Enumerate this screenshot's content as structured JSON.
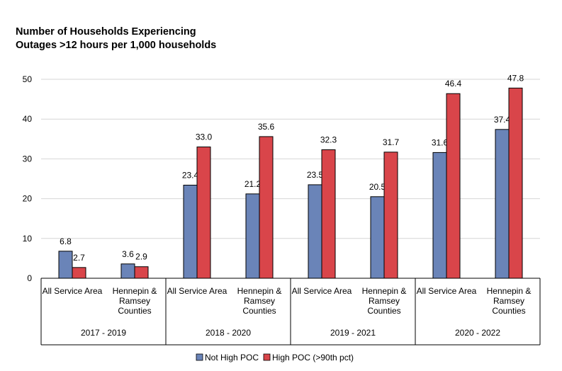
{
  "chart_data": {
    "type": "bar",
    "title_line1": "Number of Households Experiencing",
    "title_line2": "Outages >12 hours per 1,000 households",
    "xlabel": "",
    "ylabel": "",
    "ylim": [
      0,
      50
    ],
    "yticks": [
      0,
      10,
      20,
      30,
      40,
      50
    ],
    "grid": true,
    "legend_position": "bottom",
    "groups": [
      {
        "label": "2017 - 2019",
        "categories": [
          {
            "label_lines": [
              "All Service Area"
            ],
            "values": [
              6.8,
              2.7
            ],
            "value_labels": [
              "6.8",
              "2.7"
            ]
          },
          {
            "label_lines": [
              "Hennepin &",
              "Ramsey",
              "Counties"
            ],
            "values": [
              3.6,
              2.9
            ],
            "value_labels": [
              "3.6",
              "2.9"
            ]
          }
        ]
      },
      {
        "label": "2018 - 2020",
        "categories": [
          {
            "label_lines": [
              "All Service Area"
            ],
            "values": [
              23.4,
              33.0
            ],
            "value_labels": [
              "23.4",
              "33.0"
            ]
          },
          {
            "label_lines": [
              "Hennepin &",
              "Ramsey",
              "Counties"
            ],
            "values": [
              21.2,
              35.6
            ],
            "value_labels": [
              "21.2",
              "35.6"
            ]
          }
        ]
      },
      {
        "label": "2019 - 2021",
        "categories": [
          {
            "label_lines": [
              "All Service Area"
            ],
            "values": [
              23.5,
              32.3
            ],
            "value_labels": [
              "23.5",
              "32.3"
            ]
          },
          {
            "label_lines": [
              "Hennepin &",
              "Ramsey",
              "Counties"
            ],
            "values": [
              20.5,
              31.7
            ],
            "value_labels": [
              "20.5",
              "31.7"
            ]
          }
        ]
      },
      {
        "label": "2020 - 2022",
        "categories": [
          {
            "label_lines": [
              "All Service Area"
            ],
            "values": [
              31.6,
              46.4
            ],
            "value_labels": [
              "31.6",
              "46.4"
            ]
          },
          {
            "label_lines": [
              "Hennepin &",
              "Ramsey",
              "Counties"
            ],
            "values": [
              37.4,
              47.8
            ],
            "value_labels": [
              "37.4",
              "47.8"
            ]
          }
        ]
      }
    ],
    "series": [
      {
        "name": "Not High POC",
        "color": "#6a84b8"
      },
      {
        "name": "High POC (>90th pct)",
        "color": "#d9454a"
      }
    ]
  }
}
